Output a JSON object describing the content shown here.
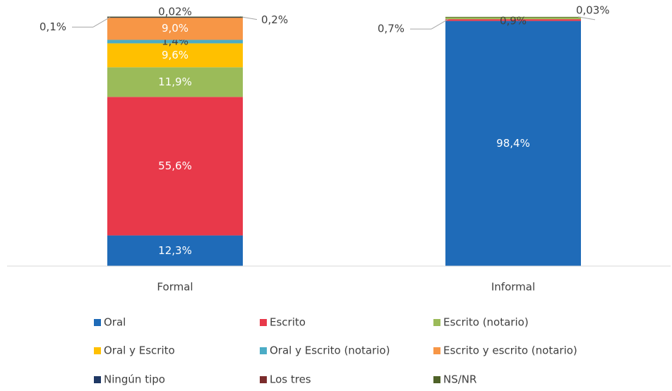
{
  "chart_data": {
    "type": "stacked_bar",
    "categories": [
      "Formal",
      "Informal"
    ],
    "ylim": [
      0,
      100
    ],
    "series": [
      {
        "name": "Oral",
        "color": "#1f6bb8",
        "values": [
          12.3,
          98.4
        ],
        "value_labels": [
          "12,3%",
          "98,4%"
        ]
      },
      {
        "name": "Escrito",
        "color": "#e8394a",
        "values": [
          55.6,
          0.7
        ],
        "value_labels": [
          "55,6%",
          "0,7%"
        ]
      },
      {
        "name": "Escrito (notario)",
        "color": "#9bbb59",
        "values": [
          11.9,
          0.9
        ],
        "value_labels": [
          "11,9%",
          "0,9%"
        ]
      },
      {
        "name": "Oral y Escrito",
        "color": "#ffc000",
        "values": [
          9.6,
          null
        ],
        "value_labels": [
          "9,6%",
          null
        ]
      },
      {
        "name": "Oral y Escrito (notario)",
        "color": "#4bacc6",
        "values": [
          1.4,
          null
        ],
        "value_labels": [
          "1,4%",
          null
        ]
      },
      {
        "name": "Escrito y escrito (notario)",
        "color": "#f79646",
        "values": [
          9.0,
          null
        ],
        "value_labels": [
          "9,0%",
          null
        ]
      },
      {
        "name": "Ningún tipo",
        "color": "#1f3864",
        "values": [
          0.1,
          null
        ],
        "value_labels": [
          "0,1%",
          null
        ]
      },
      {
        "name": "Los tres",
        "color": "#7b2c2c",
        "values": [
          0.2,
          null
        ],
        "value_labels": [
          "0,2%",
          null
        ]
      },
      {
        "name": "NS/NR",
        "color": "#4f6228",
        "values": [
          0.02,
          0.03
        ],
        "value_labels": [
          "0,02%",
          "0,03%"
        ]
      }
    ]
  }
}
